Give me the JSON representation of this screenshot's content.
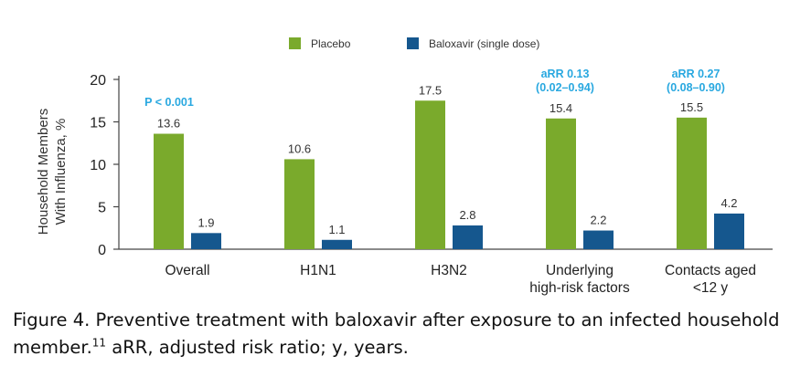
{
  "chart_data": {
    "type": "bar",
    "title": "",
    "xlabel": "",
    "ylabel": [
      "Household Members",
      "With Influenza, %"
    ],
    "ylim": [
      0,
      20
    ],
    "yticks": [
      0,
      5,
      10,
      15,
      20
    ],
    "grid": false,
    "legend_position": "top",
    "categories": [
      [
        "Overall"
      ],
      [
        "H1N1"
      ],
      [
        "H3N2"
      ],
      [
        "Underlying",
        "high-risk factors"
      ],
      [
        "Contacts aged",
        "<12 y"
      ]
    ],
    "series": [
      {
        "name": "Placebo",
        "color": "#7aaa2c",
        "values": [
          13.6,
          10.6,
          17.5,
          15.4,
          15.5
        ]
      },
      {
        "name": "Baloxavir (single dose)",
        "color": "#15578e",
        "values": [
          1.9,
          1.1,
          2.8,
          2.2,
          4.2
        ]
      }
    ],
    "annotations": [
      {
        "category_index": 0,
        "lines": [
          "P < 0.001"
        ],
        "color": "#29a8e0"
      },
      {
        "category_index": 3,
        "lines": [
          "aRR 0.13",
          "(0.02–0.94)"
        ],
        "color": "#29a8e0"
      },
      {
        "category_index": 4,
        "lines": [
          "aRR 0.27",
          "(0.08–0.90)"
        ],
        "color": "#29a8e0"
      }
    ]
  },
  "caption": {
    "prefix": "Figure 4. Preventive treatment with baloxavir after exposure to an infected household member.",
    "superscript": "11",
    "suffix": " aRR, adjusted risk ratio; y, years."
  }
}
